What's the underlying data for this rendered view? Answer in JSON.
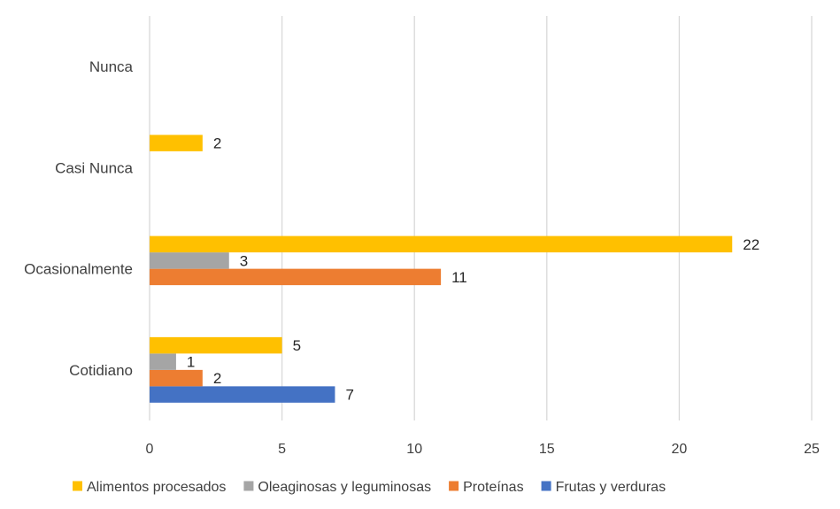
{
  "chart_data": {
    "type": "bar",
    "orientation": "horizontal",
    "title": "",
    "xlabel": "",
    "ylabel": "",
    "categories": [
      "Cotidiano",
      "Ocasionalmente",
      "Casi Nunca",
      "Nunca"
    ],
    "xlim": [
      0,
      25
    ],
    "xticks": [
      0,
      5,
      10,
      15,
      20,
      25
    ],
    "grid": true,
    "legend_position": "bottom",
    "series": [
      {
        "name": "Frutas y verduras",
        "color": "#4472C4",
        "values": [
          7,
          null,
          null,
          null
        ]
      },
      {
        "name": "Proteínas",
        "color": "#ED7D31",
        "values": [
          2,
          11,
          null,
          null
        ]
      },
      {
        "name": "Oleaginosas y leguminosas",
        "color": "#A5A5A5",
        "values": [
          1,
          3,
          null,
          null
        ]
      },
      {
        "name": "Alimentos procesados",
        "color": "#FFC000",
        "values": [
          5,
          22,
          2,
          null
        ]
      }
    ],
    "legend_order": [
      "Alimentos procesados",
      "Oleaginosas y leguminosas",
      "Proteínas",
      "Frutas y verduras"
    ]
  }
}
